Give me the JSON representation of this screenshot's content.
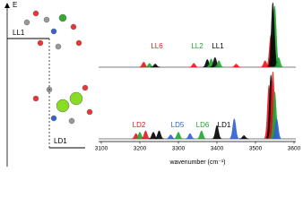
{
  "chart_data": {
    "type": "spectrum",
    "energy_label": "E",
    "levels": [
      "LL1",
      "LD1"
    ],
    "xlabel": "wavenumber (cm⁻¹)",
    "xlim": [
      3100,
      3600
    ],
    "xticks": [
      3100,
      3200,
      3300,
      3400,
      3500,
      3600
    ],
    "panels": [
      {
        "annotations": [
          {
            "text": "LL6",
            "color": "#e8161b"
          },
          {
            "text": "LL2",
            "color": "#1ea535"
          },
          {
            "text": "LL1",
            "color": "#000000"
          }
        ],
        "peaks": [
          {
            "x": 3210,
            "height": 0.08,
            "color": "#e8161b"
          },
          {
            "x": 3225,
            "height": 0.06,
            "color": "#1ea535"
          },
          {
            "x": 3240,
            "height": 0.05,
            "color": "#000000"
          },
          {
            "x": 3340,
            "height": 0.06,
            "color": "#e8161b"
          },
          {
            "x": 3375,
            "height": 0.12,
            "color": "#000000"
          },
          {
            "x": 3385,
            "height": 0.13,
            "color": "#1ea535"
          },
          {
            "x": 3395,
            "height": 0.15,
            "color": "#000000"
          },
          {
            "x": 3405,
            "height": 0.1,
            "color": "#1ea535"
          },
          {
            "x": 3450,
            "height": 0.05,
            "color": "#e8161b"
          },
          {
            "x": 3525,
            "height": 0.1,
            "color": "#e8161b"
          },
          {
            "x": 3540,
            "height": 0.5,
            "color": "#e8161b"
          },
          {
            "x": 3550,
            "height": 0.95,
            "color": "#1ea535"
          },
          {
            "x": 3545,
            "height": 1.0,
            "color": "#000000"
          },
          {
            "x": 3560,
            "height": 0.15,
            "color": "#1ea535"
          }
        ]
      },
      {
        "annotations": [
          {
            "text": "LD2",
            "color": "#e8161b"
          },
          {
            "text": "LD5",
            "color": "#2c5fd0"
          },
          {
            "text": "LD6",
            "color": "#1ea535"
          },
          {
            "text": "LD1",
            "color": "#000000"
          }
        ],
        "peaks": [
          {
            "x": 3190,
            "height": 0.08,
            "color": "#e8161b"
          },
          {
            "x": 3200,
            "height": 0.1,
            "color": "#1ea535"
          },
          {
            "x": 3215,
            "height": 0.12,
            "color": "#e8161b"
          },
          {
            "x": 3235,
            "height": 0.1,
            "color": "#000000"
          },
          {
            "x": 3250,
            "height": 0.12,
            "color": "#000000"
          },
          {
            "x": 3280,
            "height": 0.06,
            "color": "#2c5fd0"
          },
          {
            "x": 3300,
            "height": 0.1,
            "color": "#1ea535"
          },
          {
            "x": 3330,
            "height": 0.08,
            "color": "#2c5fd0"
          },
          {
            "x": 3360,
            "height": 0.12,
            "color": "#1ea535"
          },
          {
            "x": 3400,
            "height": 0.2,
            "color": "#000000"
          },
          {
            "x": 3445,
            "height": 0.3,
            "color": "#2c5fd0"
          },
          {
            "x": 3470,
            "height": 0.05,
            "color": "#000000"
          },
          {
            "x": 3535,
            "height": 0.8,
            "color": "#e8161b"
          },
          {
            "x": 3540,
            "height": 0.95,
            "color": "#000000"
          },
          {
            "x": 3545,
            "height": 1.0,
            "color": "#e8161b"
          },
          {
            "x": 3550,
            "height": 0.7,
            "color": "#1ea535"
          },
          {
            "x": 3555,
            "height": 0.3,
            "color": "#2c5fd0"
          }
        ]
      }
    ]
  }
}
